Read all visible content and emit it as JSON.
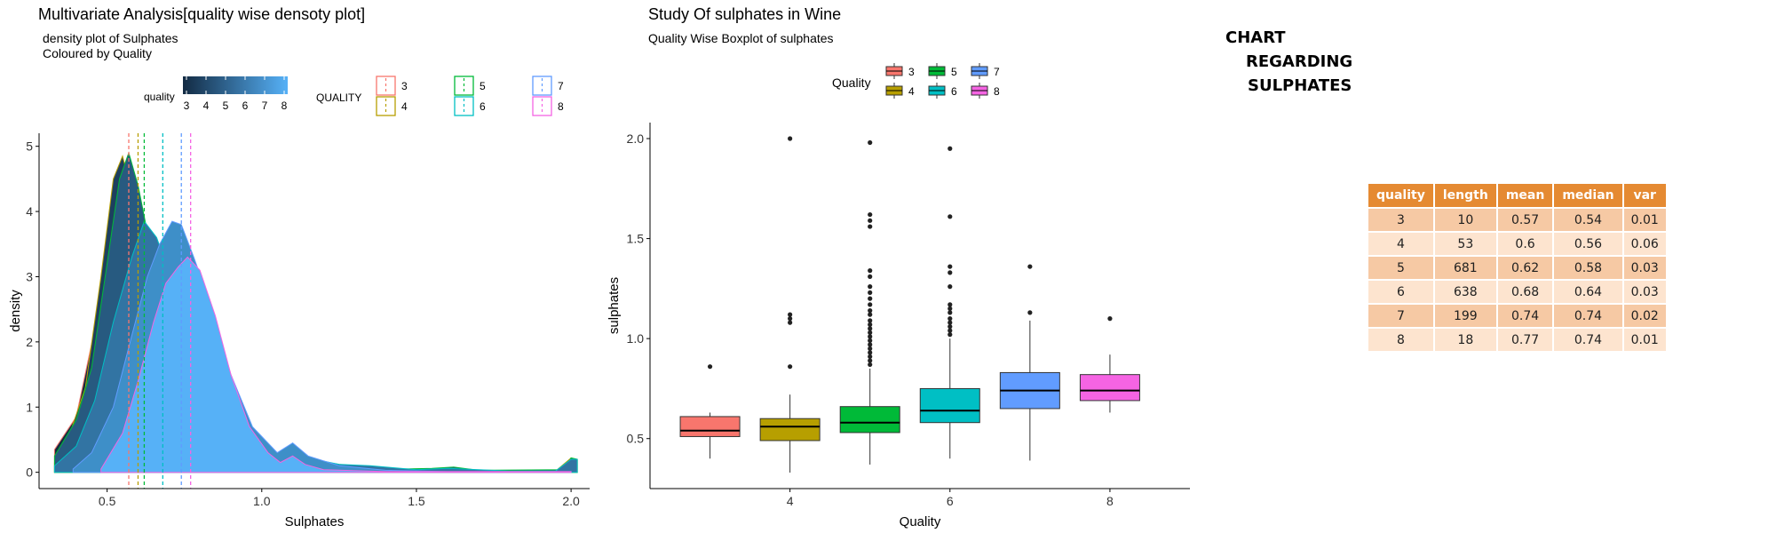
{
  "chart_data": [
    {
      "type": "area",
      "title": "Multivariate Analysis[quality wise densoty plot]",
      "subtitle": [
        "density plot of Sulphates",
        "Coloured by Quality"
      ],
      "xlabel": "Sulphates",
      "ylabel": "density",
      "xlim": [
        0.28,
        2.06
      ],
      "ylim": [
        -0.25,
        5.2
      ],
      "x_ticks": [
        0.5,
        1.0,
        1.5,
        2.0
      ],
      "x_tick_labels": [
        "0.5",
        "1.0",
        "1.5",
        "2.0"
      ],
      "y_ticks": [
        0,
        1,
        2,
        3,
        4,
        5
      ],
      "y_tick_labels": [
        "0",
        "1",
        "2",
        "3",
        "4",
        "5"
      ],
      "fill_legend": {
        "title": "quality",
        "labels": [
          "3",
          "4",
          "5",
          "6",
          "7",
          "8"
        ]
      },
      "line_legend": {
        "title": "QUALITY",
        "labels": [
          "3",
          "4",
          "5",
          "6",
          "7",
          "8"
        ]
      },
      "mean_lines": [
        {
          "quality": "3",
          "x": 0.57,
          "color": "#f8766d"
        },
        {
          "quality": "4",
          "x": 0.6,
          "color": "#b79f00"
        },
        {
          "quality": "5",
          "x": 0.62,
          "color": "#00ba38"
        },
        {
          "quality": "6",
          "x": 0.68,
          "color": "#00bfc4"
        },
        {
          "quality": "7",
          "x": 0.74,
          "color": "#619cff"
        },
        {
          "quality": "8",
          "x": 0.77,
          "color": "#f564e3"
        }
      ],
      "series": [
        {
          "quality": "3",
          "fill": "#132b43",
          "stroke": "#f8766d",
          "points": [
            [
              0.33,
              0
            ],
            [
              0.33,
              0.35
            ],
            [
              0.4,
              0.85
            ],
            [
              0.46,
              2.2
            ],
            [
              0.5,
              3.5
            ],
            [
              0.54,
              4.35
            ],
            [
              0.57,
              4.5
            ],
            [
              0.6,
              3.9
            ],
            [
              0.65,
              2.4
            ],
            [
              0.7,
              1.4
            ],
            [
              0.75,
              0.75
            ],
            [
              0.8,
              0.45
            ],
            [
              0.86,
              0.3
            ],
            [
              0.95,
              0.18
            ],
            [
              1.05,
              0.1
            ],
            [
              1.1,
              0.08
            ],
            [
              1.2,
              0.04
            ],
            [
              1.4,
              0.02
            ],
            [
              1.7,
              0.01
            ],
            [
              2.0,
              0.01
            ],
            [
              2.0,
              0
            ]
          ]
        },
        {
          "quality": "4",
          "fill": "#1d3f5f",
          "stroke": "#b79f00",
          "points": [
            [
              0.33,
              0
            ],
            [
              0.33,
              0.15
            ],
            [
              0.38,
              0.6
            ],
            [
              0.43,
              1.3
            ],
            [
              0.48,
              3.0
            ],
            [
              0.52,
              4.5
            ],
            [
              0.55,
              4.85
            ],
            [
              0.58,
              4.3
            ],
            [
              0.62,
              3.3
            ],
            [
              0.66,
              2.2
            ],
            [
              0.72,
              1.1
            ],
            [
              0.78,
              0.55
            ],
            [
              0.86,
              0.22
            ],
            [
              0.92,
              0.12
            ],
            [
              1.05,
              0.08
            ],
            [
              1.1,
              0.2
            ],
            [
              1.14,
              0.08
            ],
            [
              1.3,
              0.03
            ],
            [
              1.6,
              0.02
            ],
            [
              1.95,
              0.02
            ],
            [
              2.0,
              0.22
            ],
            [
              2.02,
              0.2
            ],
            [
              2.02,
              0
            ]
          ]
        },
        {
          "quality": "5",
          "fill": "#275a80",
          "stroke": "#00ba38",
          "points": [
            [
              0.33,
              0
            ],
            [
              0.33,
              0.25
            ],
            [
              0.4,
              0.8
            ],
            [
              0.45,
              1.6
            ],
            [
              0.5,
              3.2
            ],
            [
              0.54,
              4.5
            ],
            [
              0.57,
              4.9
            ],
            [
              0.6,
              4.4
            ],
            [
              0.65,
              3.2
            ],
            [
              0.72,
              1.9
            ],
            [
              0.8,
              0.9
            ],
            [
              0.9,
              0.4
            ],
            [
              1.0,
              0.25
            ],
            [
              1.05,
              0.22
            ],
            [
              1.1,
              0.4
            ],
            [
              1.15,
              0.2
            ],
            [
              1.25,
              0.12
            ],
            [
              1.35,
              0.08
            ],
            [
              1.45,
              0.05
            ],
            [
              1.55,
              0.06
            ],
            [
              1.62,
              0.08
            ],
            [
              1.7,
              0.03
            ],
            [
              1.98,
              0.04
            ],
            [
              2.0,
              0.22
            ],
            [
              2.02,
              0.2
            ],
            [
              2.02,
              0
            ]
          ]
        },
        {
          "quality": "6",
          "fill": "#3274a3",
          "stroke": "#00bfc4",
          "points": [
            [
              0.33,
              0
            ],
            [
              0.33,
              0.1
            ],
            [
              0.4,
              0.4
            ],
            [
              0.46,
              1.1
            ],
            [
              0.52,
              2.3
            ],
            [
              0.58,
              3.3
            ],
            [
              0.62,
              3.85
            ],
            [
              0.66,
              3.6
            ],
            [
              0.72,
              2.8
            ],
            [
              0.8,
              1.7
            ],
            [
              0.88,
              0.9
            ],
            [
              0.96,
              0.45
            ],
            [
              1.05,
              0.28
            ],
            [
              1.1,
              0.42
            ],
            [
              1.15,
              0.22
            ],
            [
              1.25,
              0.12
            ],
            [
              1.35,
              0.1
            ],
            [
              1.45,
              0.06
            ],
            [
              1.5,
              0.04
            ],
            [
              1.6,
              0.06
            ],
            [
              1.8,
              0.02
            ],
            [
              1.95,
              0.02
            ],
            [
              2.0,
              0.2
            ],
            [
              2.02,
              0.2
            ],
            [
              2.02,
              0
            ]
          ]
        },
        {
          "quality": "7",
          "fill": "#3e8fc8",
          "stroke": "#619cff",
          "points": [
            [
              0.39,
              0
            ],
            [
              0.39,
              0.05
            ],
            [
              0.45,
              0.3
            ],
            [
              0.52,
              1.0
            ],
            [
              0.58,
              2.1
            ],
            [
              0.63,
              3.0
            ],
            [
              0.67,
              3.5
            ],
            [
              0.71,
              3.85
            ],
            [
              0.74,
              3.8
            ],
            [
              0.78,
              3.3
            ],
            [
              0.84,
              2.5
            ],
            [
              0.9,
              1.5
            ],
            [
              0.97,
              0.7
            ],
            [
              1.05,
              0.3
            ],
            [
              1.1,
              0.45
            ],
            [
              1.15,
              0.25
            ],
            [
              1.25,
              0.1
            ],
            [
              1.4,
              0.03
            ],
            [
              1.6,
              0.01
            ],
            [
              1.9,
              0.01
            ],
            [
              2.0,
              0.01
            ],
            [
              2.0,
              0
            ]
          ]
        },
        {
          "quality": "8",
          "fill": "#56b1f7",
          "stroke": "#f564e3",
          "points": [
            [
              0.48,
              0
            ],
            [
              0.48,
              0.05
            ],
            [
              0.55,
              0.6
            ],
            [
              0.6,
              1.4
            ],
            [
              0.65,
              2.3
            ],
            [
              0.69,
              2.9
            ],
            [
              0.73,
              3.15
            ],
            [
              0.76,
              3.3
            ],
            [
              0.8,
              3.1
            ],
            [
              0.85,
              2.4
            ],
            [
              0.9,
              1.5
            ],
            [
              0.96,
              0.7
            ],
            [
              1.02,
              0.3
            ],
            [
              1.06,
              0.15
            ],
            [
              1.1,
              0.25
            ],
            [
              1.14,
              0.12
            ],
            [
              1.2,
              0.04
            ],
            [
              1.4,
              0.01
            ],
            [
              1.8,
              0.01
            ],
            [
              2.0,
              0.01
            ],
            [
              2.0,
              0
            ]
          ]
        }
      ]
    },
    {
      "type": "box",
      "title": "Study Of  sulphates in Wine",
      "subtitle": "Quality Wise Boxplot of sulphates",
      "xlabel": "Quality",
      "ylabel": "sulphates",
      "xlim": [
        2.25,
        9.0
      ],
      "ylim": [
        0.25,
        2.08
      ],
      "x_ticks": [
        4,
        6,
        8
      ],
      "x_tick_labels": [
        "4",
        "6",
        "8"
      ],
      "y_ticks": [
        0.5,
        1.0,
        1.5,
        2.0
      ],
      "y_tick_labels": [
        "0.5",
        "1.0",
        "1.5",
        "2.0"
      ],
      "legend": {
        "title": "Quality",
        "labels": [
          "3",
          "4",
          "5",
          "6",
          "7",
          "8"
        ]
      },
      "boxes": [
        {
          "quality": 3,
          "color": "#f8766d",
          "lower": 0.4,
          "q1": 0.51,
          "median": 0.54,
          "q3": 0.61,
          "upper": 0.63,
          "outliers": [
            0.86
          ]
        },
        {
          "quality": 4,
          "color": "#b79f00",
          "lower": 0.33,
          "q1": 0.49,
          "median": 0.56,
          "q3": 0.6,
          "upper": 0.72,
          "outliers": [
            0.86,
            1.08,
            1.1,
            1.12,
            2.0
          ]
        },
        {
          "quality": 5,
          "color": "#00ba38",
          "lower": 0.37,
          "q1": 0.53,
          "median": 0.58,
          "q3": 0.66,
          "upper": 0.85,
          "outliers": [
            0.87,
            0.89,
            0.91,
            0.93,
            0.95,
            0.97,
            0.99,
            1.01,
            1.03,
            1.05,
            1.07,
            1.09,
            1.12,
            1.14,
            1.17,
            1.2,
            1.23,
            1.26,
            1.31,
            1.34,
            1.56,
            1.59,
            1.62,
            1.98
          ]
        },
        {
          "quality": 6,
          "color": "#00bfc4",
          "lower": 0.4,
          "q1": 0.58,
          "median": 0.64,
          "q3": 0.75,
          "upper": 1.0,
          "outliers": [
            1.02,
            1.04,
            1.06,
            1.08,
            1.1,
            1.13,
            1.15,
            1.17,
            1.26,
            1.33,
            1.36,
            1.61,
            1.95
          ]
        },
        {
          "quality": 7,
          "color": "#619cff",
          "lower": 0.39,
          "q1": 0.65,
          "median": 0.74,
          "q3": 0.83,
          "upper": 1.09,
          "outliers": [
            1.13,
            1.36
          ]
        },
        {
          "quality": 8,
          "color": "#f564e3",
          "lower": 0.63,
          "q1": 0.69,
          "median": 0.74,
          "q3": 0.82,
          "upper": 0.92,
          "outliers": [
            1.1
          ]
        }
      ]
    },
    {
      "type": "table",
      "columns": [
        "quality",
        "length",
        "mean",
        "median",
        "var"
      ],
      "rows": [
        [
          "3",
          "10",
          "0.57",
          "0.54",
          "0.01"
        ],
        [
          "4",
          "53",
          "0.6",
          "0.56",
          "0.06"
        ],
        [
          "5",
          "681",
          "0.62",
          "0.58",
          "0.03"
        ],
        [
          "6",
          "638",
          "0.68",
          "0.64",
          "0.03"
        ],
        [
          "7",
          "199",
          "0.74",
          "0.74",
          "0.02"
        ],
        [
          "8",
          "18",
          "0.77",
          "0.74",
          "0.01"
        ]
      ]
    }
  ],
  "heading": {
    "line1": "CHART",
    "line2": "REGARDING",
    "line3": "SULPHATES"
  }
}
